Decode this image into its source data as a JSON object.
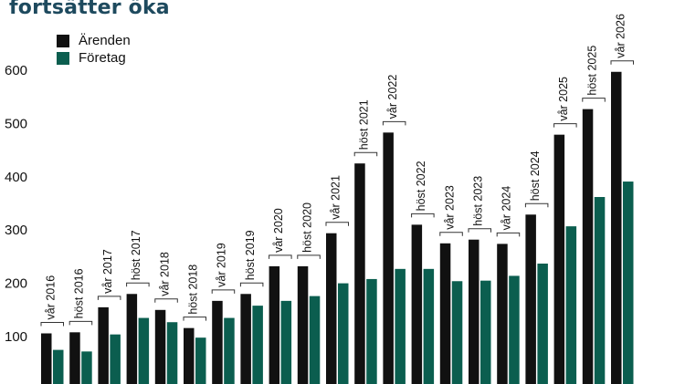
{
  "chart_data": {
    "type": "bar",
    "title": "fortsätter öka",
    "categories": [
      "vår 2016",
      "höst 2016",
      "vår 2017",
      "höst 2017",
      "vår 2018",
      "höst 2018",
      "vår 2019",
      "höst 2019",
      "vår 2020",
      "höst 2020",
      "vår 2021",
      "höst 2021",
      "vår 2022",
      "höst 2022",
      "vår 2023",
      "höst 2023",
      "vår 2024",
      "höst 2024",
      "vår 2025",
      "höst 2025",
      "vår 2026"
    ],
    "series": [
      {
        "name": "Ärenden",
        "color": "#111111",
        "values": [
          106,
          108,
          155,
          180,
          150,
          116,
          167,
          180,
          232,
          232,
          294,
          425,
          483,
          310,
          275,
          282,
          274,
          329,
          479,
          527,
          597
        ]
      },
      {
        "name": "Företag",
        "color": "#0b5e4f",
        "values": [
          75,
          72,
          104,
          135,
          127,
          98,
          135,
          158,
          167,
          176,
          200,
          208,
          227,
          227,
          204,
          205,
          214,
          237,
          307,
          362,
          391
        ]
      }
    ],
    "yticks": [
      100,
      200,
      300,
      400,
      500,
      600
    ],
    "ylim": [
      30,
      640
    ],
    "grid": false,
    "legend": "top-left"
  }
}
